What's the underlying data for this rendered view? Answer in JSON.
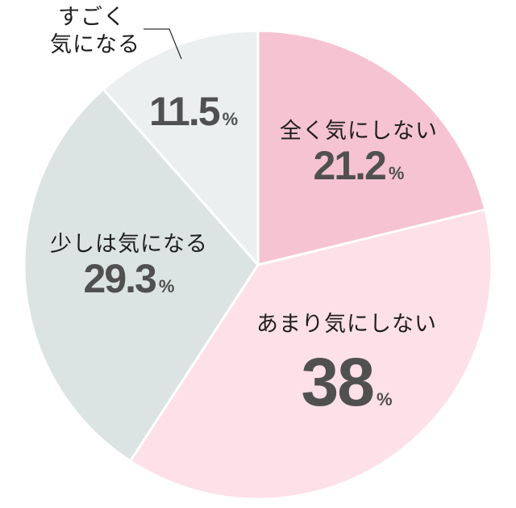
{
  "chart_data": {
    "type": "pie",
    "title": "",
    "start_angle_deg": 0,
    "direction": "clockwise",
    "slices": [
      {
        "label": "全く気にしない",
        "value": 21.2,
        "display": "21.2",
        "color": "#f6c3d3"
      },
      {
        "label": "あまり気にしない",
        "value": 38,
        "display": "38",
        "color": "#fde0e8"
      },
      {
        "label": "少しは気になる",
        "value": 29.3,
        "display": "29.3",
        "color": "#dbe4e2"
      },
      {
        "label": "すごく気になる",
        "value": 11.5,
        "display": "11.5",
        "color": "#ebeff0"
      }
    ],
    "unit": "%",
    "callout": {
      "slice": "すごく気になる",
      "lines": [
        "すごく",
        "気になる"
      ]
    }
  },
  "labels": {
    "slice0_name": "全く気にしない",
    "slice0_value": "21.2",
    "slice1_name": "あまり気にしない",
    "slice1_value": "38",
    "slice2_name": "少しは気になる",
    "slice2_value": "29.3",
    "slice3_line1": "すごく",
    "slice3_line2": "気になる",
    "slice3_value": "11.5",
    "percent_sign": "%"
  },
  "style": {
    "separator_color": "#ffffff",
    "value_text_color": "#505050",
    "leader_line_color": "#333333"
  }
}
